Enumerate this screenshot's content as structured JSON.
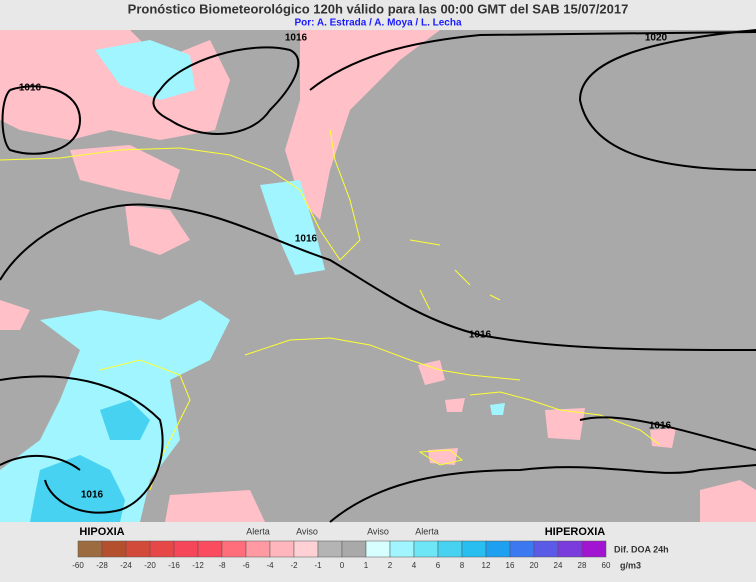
{
  "header": {
    "title": "Pronóstico Biometeorológico 120h  válido para las 00:00 GMT del  SAB 15/07/2017",
    "credits": "Por: A. Estrada / A. Moya / L. Lecha"
  },
  "isobar_labels": [
    "1016",
    "1020",
    "1016",
    "1016",
    "1016",
    "1016",
    "1016"
  ],
  "legend": {
    "left_label": "HIPOXIA",
    "right_label": "HIPEROXIA",
    "zone_labels": [
      "Alerta",
      "Aviso",
      "Aviso",
      "Alerta"
    ],
    "ticks": [
      -60,
      -28,
      -24,
      -20,
      -16,
      -12,
      -8,
      -6,
      -4,
      -2,
      -1,
      0,
      1,
      2,
      4,
      6,
      8,
      12,
      16,
      20,
      24,
      28,
      60
    ],
    "colors": [
      "#9c6b3f",
      "#b5502e",
      "#d24b3a",
      "#e64848",
      "#f5465a",
      "#fa4b5f",
      "#ff6e7a",
      "#ff9aa3",
      "#ffb6bd",
      "#ffd0d4",
      "#b4b4b4",
      "#a9a9a9",
      "#d8ffff",
      "#a0f5ff",
      "#6ee6f5",
      "#46d2f0",
      "#28bef0",
      "#1ea0f0",
      "#3c78f0",
      "#5a5ae6",
      "#7a3cdc",
      "#a014d2"
    ],
    "variable": "Dif. DOA 24h",
    "unit": "g/m3"
  }
}
